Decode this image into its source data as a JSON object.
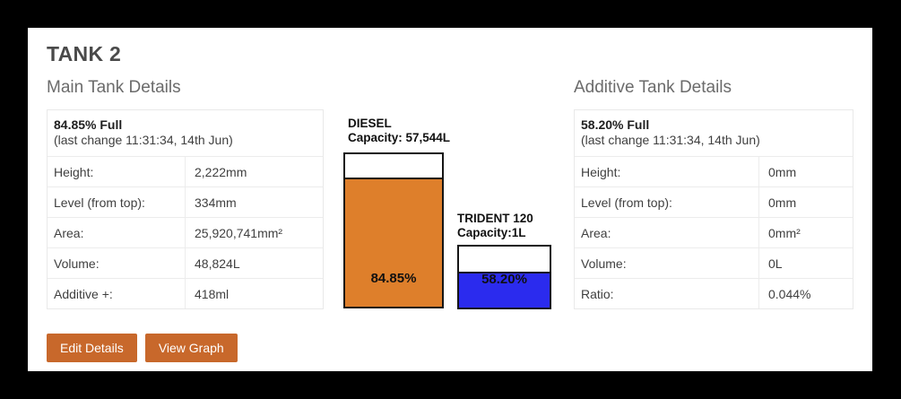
{
  "page": {
    "title": "TANK 2"
  },
  "colors": {
    "background": "#000000",
    "card": "#ffffff",
    "button_bg": "#c8682b",
    "main_tank_fill": "#de7f2b",
    "additive_tank_fill": "#2b2bee"
  },
  "main_details": {
    "heading": "Main Tank Details",
    "percent_full": "84.85% Full",
    "last_change": "(last change 11:31:34, 14th Jun)",
    "rows": [
      {
        "label": "Height:",
        "value": "2,222mm"
      },
      {
        "label": "Level (from top):",
        "value": "334mm"
      },
      {
        "label": "Area:",
        "value": "25,920,741mm²"
      },
      {
        "label": "Volume:",
        "value": "48,824L"
      },
      {
        "label": "Additive +:",
        "value": "418ml"
      }
    ]
  },
  "tanks": {
    "main": {
      "name": "DIESEL",
      "capacity": "Capacity: 57,544L",
      "percent_label": "84.85%",
      "fill_percent": 84.85
    },
    "additive": {
      "name": "TRIDENT 120",
      "capacity": "Capacity:1L",
      "percent_label": "58.20%",
      "fill_percent": 58.2
    }
  },
  "additive_details": {
    "heading": "Additive Tank Details",
    "percent_full": "58.20% Full",
    "last_change": "(last change 11:31:34, 14th Jun)",
    "rows": [
      {
        "label": "Height:",
        "value": "0mm"
      },
      {
        "label": "Level (from top):",
        "value": "0mm"
      },
      {
        "label": "Area:",
        "value": "0mm²"
      },
      {
        "label": "Volume:",
        "value": "0L"
      },
      {
        "label": "Ratio:",
        "value": "0.044%"
      }
    ]
  },
  "buttons": {
    "edit": "Edit Details",
    "view_graph": "View Graph"
  }
}
